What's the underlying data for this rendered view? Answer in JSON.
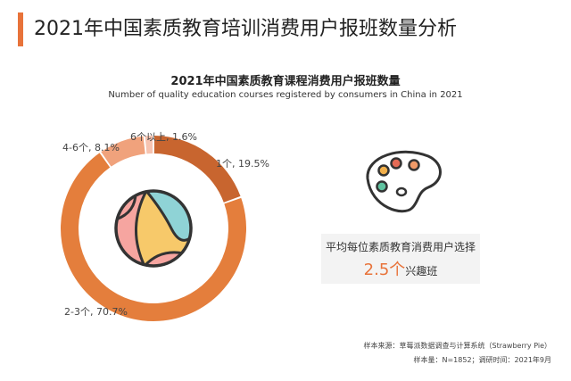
{
  "header": {
    "title": "2021年中国素质教育培训消费用户报班数量分析",
    "accent_color": "#e8733a"
  },
  "chart_data": {
    "type": "pie",
    "style": "donut",
    "title": "2021年中国素质教育课程消费用户报班数量",
    "subtitle": "Number of quality education courses registered by consumers in China in 2021",
    "categories": [
      "1个",
      "2-3个",
      "4-6个",
      "6个以上"
    ],
    "values": [
      19.5,
      70.7,
      8.1,
      1.6
    ],
    "labels": [
      "1个, 19.5%",
      "2-3个, 70.7%",
      "4-6个, 8.1%",
      "6个以上, 1.6%"
    ],
    "colors": [
      "#c8652f",
      "#e47e3c",
      "#f0a27c",
      "#f6c3b0"
    ],
    "center_icon": "beach-ball-icon"
  },
  "average_card": {
    "text": "平均每位素质教育消费用户选择",
    "value": "2.5个",
    "unit": "兴趣班",
    "icon": "paint-palette-icon"
  },
  "footer": {
    "source": "样本来源：草莓派数据调查与计算系统（Strawberry Pie）",
    "sample": "样本量：N=1852；调研时间：2021年9月"
  }
}
